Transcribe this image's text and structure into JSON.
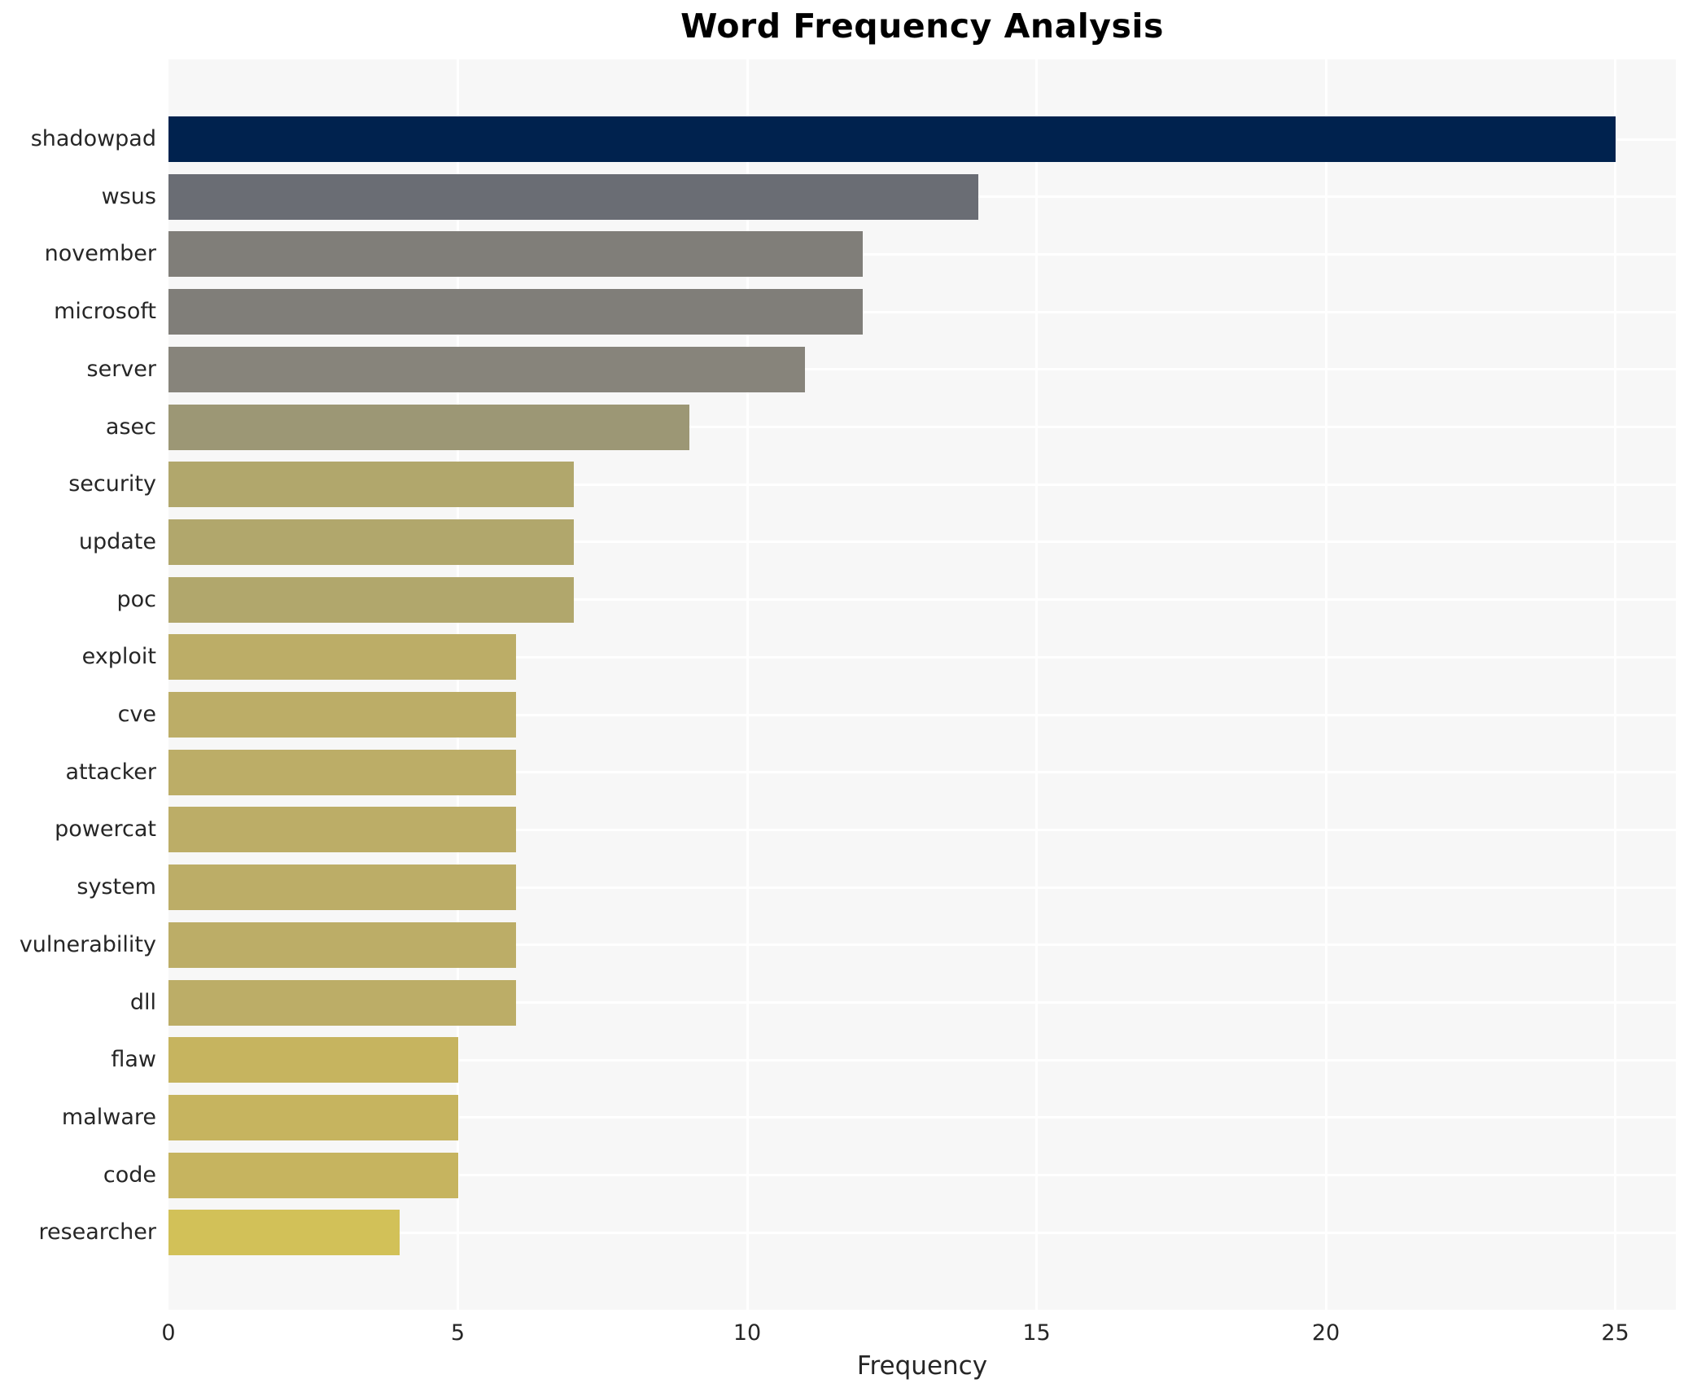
{
  "title": "Word Frequency Analysis",
  "xlabel": "Frequency",
  "plot_background": "#f7f7f7",
  "gridline_color": "#ffffff",
  "text_color": "#262626",
  "chart_data": {
    "type": "bar",
    "orientation": "horizontal",
    "title": "Word Frequency Analysis",
    "xlabel": "Frequency",
    "ylabel": "",
    "xlim": [
      0,
      26
    ],
    "xticks": [
      0,
      5,
      10,
      15,
      20,
      25
    ],
    "grid": true,
    "legend": false,
    "categories": [
      "shadowpad",
      "wsus",
      "november",
      "microsoft",
      "server",
      "asec",
      "security",
      "update",
      "poc",
      "exploit",
      "cve",
      "attacker",
      "powercat",
      "system",
      "vulnerability",
      "dll",
      "flaw",
      "malware",
      "code",
      "researcher"
    ],
    "values": [
      25,
      14,
      12,
      12,
      11,
      9,
      7,
      7,
      7,
      6,
      6,
      6,
      6,
      6,
      6,
      6,
      5,
      5,
      5,
      4
    ],
    "bar_colors": [
      "#00224e",
      "#6a6d74",
      "#807e79",
      "#807e79",
      "#87847b",
      "#9c9775",
      "#b1a76c",
      "#b1a76c",
      "#b1a76c",
      "#bcad67",
      "#bcad67",
      "#bcad67",
      "#bcad67",
      "#bcad67",
      "#bcad67",
      "#bcad67",
      "#c6b45f",
      "#c6b45f",
      "#c6b45f",
      "#d2c158"
    ]
  }
}
